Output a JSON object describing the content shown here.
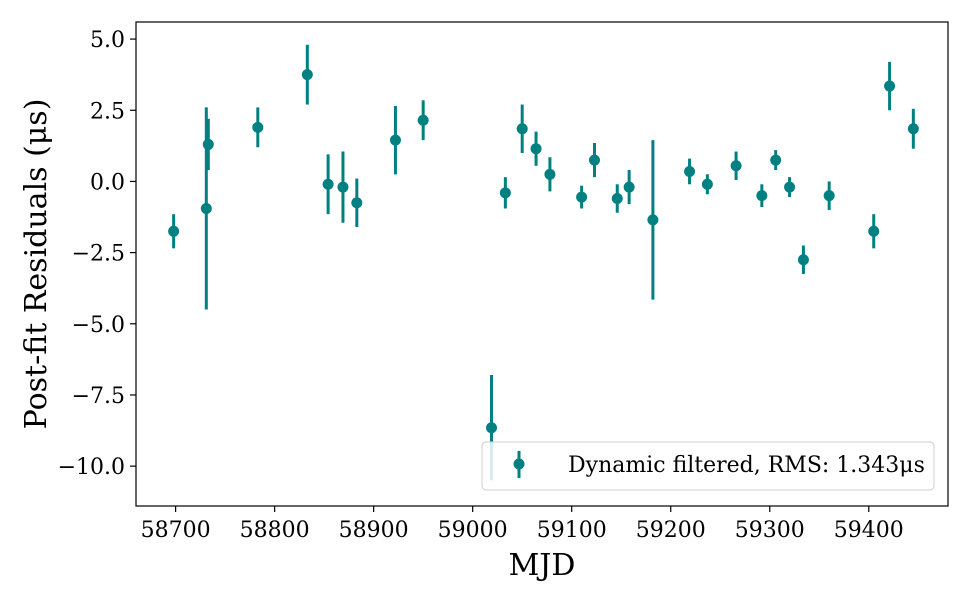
{
  "chart_data": {
    "type": "scatter",
    "title": "",
    "xlabel": "MJD",
    "ylabel": "Post-fit Residuals (μs)",
    "xlim": [
      58660,
      59480
    ],
    "ylim": [
      -11.4,
      5.6
    ],
    "xticks": [
      58700,
      58800,
      58900,
      59000,
      59100,
      59200,
      59300,
      59400
    ],
    "xtick_labels": [
      "58700",
      "58800",
      "58900",
      "59000",
      "59100",
      "59200",
      "59300",
      "59400"
    ],
    "yticks": [
      5.0,
      2.5,
      0.0,
      -2.5,
      -5.0,
      -7.5,
      -10.0
    ],
    "ytick_labels": [
      "5.0",
      "2.5",
      "0.0",
      "−2.5",
      "−5.0",
      "−7.5",
      "−10.0"
    ],
    "grid": false,
    "color": "#008080",
    "legend": {
      "position": "lower-right",
      "entries": [
        "Dynamic filtered, RMS: 1.343μs"
      ]
    },
    "series": [
      {
        "name": "Dynamic filtered, RMS: 1.343μs",
        "points": [
          {
            "x": 58698,
            "y": -1.75,
            "err": 0.6
          },
          {
            "x": 58731,
            "y": -0.95,
            "err": 3.55
          },
          {
            "x": 58733,
            "y": 1.3,
            "err": 0.9
          },
          {
            "x": 58783,
            "y": 1.9,
            "err": 0.7
          },
          {
            "x": 58833,
            "y": 3.75,
            "err": 1.05
          },
          {
            "x": 58854,
            "y": -0.1,
            "err": 1.05
          },
          {
            "x": 58869,
            "y": -0.2,
            "err": 1.25
          },
          {
            "x": 58883,
            "y": -0.75,
            "err": 0.85
          },
          {
            "x": 58922,
            "y": 1.45,
            "err": 1.2
          },
          {
            "x": 58950,
            "y": 2.15,
            "err": 0.7
          },
          {
            "x": 59019,
            "y": -8.65,
            "err": 1.85
          },
          {
            "x": 59033,
            "y": -0.4,
            "err": 0.55
          },
          {
            "x": 59050,
            "y": 1.85,
            "err": 0.85
          },
          {
            "x": 59064,
            "y": 1.15,
            "err": 0.6
          },
          {
            "x": 59078,
            "y": 0.25,
            "err": 0.6
          },
          {
            "x": 59110,
            "y": -0.55,
            "err": 0.4
          },
          {
            "x": 59123,
            "y": 0.75,
            "err": 0.6
          },
          {
            "x": 59146,
            "y": -0.6,
            "err": 0.5
          },
          {
            "x": 59158,
            "y": -0.2,
            "err": 0.6
          },
          {
            "x": 59182,
            "y": -1.35,
            "err": 2.8
          },
          {
            "x": 59219,
            "y": 0.35,
            "err": 0.45
          },
          {
            "x": 59237,
            "y": -0.1,
            "err": 0.35
          },
          {
            "x": 59266,
            "y": 0.55,
            "err": 0.5
          },
          {
            "x": 59292,
            "y": -0.5,
            "err": 0.4
          },
          {
            "x": 59306,
            "y": 0.75,
            "err": 0.35
          },
          {
            "x": 59320,
            "y": -0.2,
            "err": 0.35
          },
          {
            "x": 59334,
            "y": -2.75,
            "err": 0.5
          },
          {
            "x": 59360,
            "y": -0.5,
            "err": 0.5
          },
          {
            "x": 59405,
            "y": -1.75,
            "err": 0.6
          },
          {
            "x": 59421,
            "y": 3.35,
            "err": 0.85
          },
          {
            "x": 59445,
            "y": 1.85,
            "err": 0.7
          }
        ]
      }
    ]
  }
}
